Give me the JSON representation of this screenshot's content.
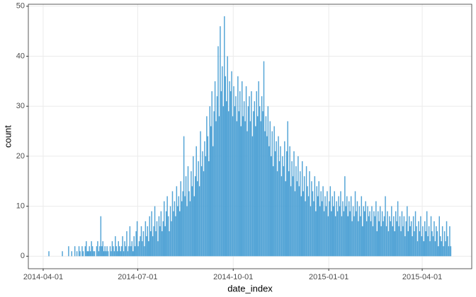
{
  "chart_data": {
    "type": "histogram",
    "x_label": "date_index",
    "y_label": "count",
    "color": "#4a9fd4",
    "grid": true,
    "xlim": [
      16146.7,
      16573.7
    ],
    "xticks": [
      {
        "value": 16161,
        "label": "2014-04-01"
      },
      {
        "value": 16252,
        "label": "2014-07-01"
      },
      {
        "value": 16344,
        "label": "2014-10-01"
      },
      {
        "value": 16436,
        "label": "2015-01-01"
      },
      {
        "value": 16526,
        "label": "2015-04-01"
      }
    ],
    "ylim": [
      -2.5,
      50.4
    ],
    "yticks": [
      0,
      10,
      20,
      30,
      40,
      50
    ],
    "bins": [
      16166,
      16167,
      16168,
      16169,
      16170,
      16171,
      16172,
      16173,
      16174,
      16175,
      16176,
      16177,
      16178,
      16179,
      16180,
      16181,
      16182,
      16183,
      16184,
      16185,
      16186,
      16187,
      16188,
      16189,
      16190,
      16191,
      16192,
      16193,
      16194,
      16195,
      16196,
      16197,
      16198,
      16199,
      16200,
      16201,
      16202,
      16203,
      16204,
      16205,
      16206,
      16207,
      16208,
      16209,
      16210,
      16211,
      16212,
      16213,
      16214,
      16215,
      16216,
      16217,
      16218,
      16219,
      16220,
      16221,
      16222,
      16223,
      16224,
      16225,
      16226,
      16227,
      16228,
      16229,
      16230,
      16231,
      16232,
      16233,
      16234,
      16235,
      16236,
      16237,
      16238,
      16239,
      16240,
      16241,
      16242,
      16243,
      16244,
      16245,
      16246,
      16247,
      16248,
      16249,
      16250,
      16251,
      16252,
      16253,
      16254,
      16255,
      16256,
      16257,
      16258,
      16259,
      16260,
      16261,
      16262,
      16263,
      16264,
      16265,
      16266,
      16267,
      16268,
      16269,
      16270,
      16271,
      16272,
      16273,
      16274,
      16275,
      16276,
      16277,
      16278,
      16279,
      16280,
      16281,
      16282,
      16283,
      16284,
      16285,
      16286,
      16287,
      16288,
      16289,
      16290,
      16291,
      16292,
      16293,
      16294,
      16295,
      16296,
      16297,
      16298,
      16299,
      16300,
      16301,
      16302,
      16303,
      16304,
      16305,
      16306,
      16307,
      16308,
      16309,
      16310,
      16311,
      16312,
      16313,
      16314,
      16315,
      16316,
      16317,
      16318,
      16319,
      16320,
      16321,
      16322,
      16323,
      16324,
      16325,
      16326,
      16327,
      16328,
      16329,
      16330,
      16331,
      16332,
      16333,
      16334,
      16335,
      16336,
      16337,
      16338,
      16339,
      16340,
      16341,
      16342,
      16343,
      16344,
      16345,
      16346,
      16347,
      16348,
      16349,
      16350,
      16351,
      16352,
      16353,
      16354,
      16355,
      16356,
      16357,
      16358,
      16359,
      16360,
      16361,
      16362,
      16363,
      16364,
      16365,
      16366,
      16367,
      16368,
      16369,
      16370,
      16371,
      16372,
      16373,
      16374,
      16375,
      16376,
      16377,
      16378,
      16379,
      16380,
      16381,
      16382,
      16383,
      16384,
      16385,
      16386,
      16387,
      16388,
      16389,
      16390,
      16391,
      16392,
      16393,
      16394,
      16395,
      16396,
      16397,
      16398,
      16399,
      16400,
      16401,
      16402,
      16403,
      16404,
      16405,
      16406,
      16407,
      16408,
      16409,
      16410,
      16411,
      16412,
      16413,
      16414,
      16415,
      16416,
      16417,
      16418,
      16419,
      16420,
      16421,
      16422,
      16423,
      16424,
      16425,
      16426,
      16427,
      16428,
      16429,
      16430,
      16431,
      16432,
      16433,
      16434,
      16435,
      16436,
      16437,
      16438,
      16439,
      16440,
      16441,
      16442,
      16443,
      16444,
      16445,
      16446,
      16447,
      16448,
      16449,
      16450,
      16451,
      16452,
      16453,
      16454,
      16455,
      16456,
      16457,
      16458,
      16459,
      16460,
      16461,
      16462,
      16463,
      16464,
      16465,
      16466,
      16467,
      16468,
      16469,
      16470,
      16471,
      16472,
      16473,
      16474,
      16475,
      16476,
      16477,
      16478,
      16479,
      16480,
      16481,
      16482,
      16483,
      16484,
      16485,
      16486,
      16487,
      16488,
      16489,
      16490,
      16491,
      16492,
      16493,
      16494,
      16495,
      16496,
      16497,
      16498,
      16499,
      16500,
      16501,
      16502,
      16503,
      16504,
      16505,
      16506,
      16507,
      16508,
      16509,
      16510,
      16511,
      16512,
      16513,
      16514,
      16515,
      16516,
      16517,
      16518,
      16519,
      16520,
      16521,
      16522,
      16523,
      16524,
      16525,
      16526,
      16527,
      16528,
      16529,
      16530,
      16531,
      16532,
      16533,
      16534,
      16535,
      16536,
      16537,
      16538,
      16539,
      16540,
      16541,
      16542,
      16543,
      16544,
      16545,
      16546,
      16547,
      16548,
      16549,
      16550,
      16551,
      16552,
      16553,
      16554
    ],
    "values": [
      1,
      0,
      0,
      0,
      0,
      0,
      0,
      0,
      0,
      0,
      0,
      0,
      0,
      1,
      0,
      0,
      0,
      0,
      0,
      2,
      0,
      0,
      1,
      0,
      0,
      2,
      0,
      1,
      0,
      2,
      1,
      0,
      2,
      1,
      0,
      2,
      3,
      1,
      1,
      2,
      1,
      3,
      2,
      1,
      1,
      0,
      2,
      3,
      1,
      2,
      8,
      2,
      3,
      1,
      2,
      1,
      2,
      1,
      0,
      2,
      1,
      3,
      2,
      1,
      4,
      2,
      1,
      3,
      2,
      1,
      2,
      4,
      1,
      3,
      2,
      5,
      1,
      2,
      6,
      2,
      3,
      1,
      4,
      2,
      5,
      7,
      2,
      3,
      4,
      6,
      3,
      5,
      2,
      7,
      4,
      6,
      3,
      8,
      5,
      9,
      4,
      6,
      10,
      5,
      7,
      3,
      8,
      6,
      9,
      5,
      7,
      11,
      6,
      9,
      12,
      8,
      5,
      10,
      7,
      13,
      9,
      11,
      8,
      14,
      10,
      12,
      9,
      15,
      11,
      13,
      24,
      12,
      16,
      10,
      18,
      13,
      11,
      17,
      14,
      20,
      12,
      16,
      22,
      15,
      19,
      14,
      25,
      18,
      21,
      17,
      23,
      20,
      28,
      24,
      19,
      30,
      26,
      33,
      22,
      29,
      35,
      27,
      32,
      42,
      28,
      46,
      33,
      38,
      30,
      48,
      36,
      31,
      40,
      29,
      35,
      33,
      37,
      28,
      34,
      30,
      32,
      27,
      36,
      29,
      33,
      26,
      35,
      28,
      31,
      27,
      34,
      25,
      30,
      32,
      27,
      33,
      24,
      29,
      31,
      26,
      33,
      28,
      35,
      30,
      27,
      32,
      29,
      39,
      25,
      28,
      24,
      30,
      22,
      27,
      20,
      25,
      18,
      26,
      21,
      23,
      17,
      24,
      19,
      22,
      16,
      20,
      18,
      23,
      15,
      21,
      27,
      17,
      22,
      14,
      19,
      16,
      21,
      13,
      18,
      15,
      20,
      14,
      17,
      12,
      19,
      13,
      16,
      11,
      18,
      14,
      12,
      17,
      10,
      15,
      13,
      11,
      16,
      9,
      14,
      12,
      15,
      10,
      13,
      11,
      14,
      9,
      12,
      10,
      13,
      8,
      11,
      14,
      9,
      12,
      10,
      13,
      8,
      11,
      9,
      12,
      10,
      13,
      8,
      11,
      9,
      16,
      10,
      12,
      8,
      11,
      9,
      12,
      7,
      10,
      8,
      13,
      9,
      11,
      7,
      10,
      8,
      12,
      6,
      10,
      9,
      11,
      7,
      10,
      8,
      9,
      7,
      10,
      6,
      9,
      8,
      11,
      5,
      9,
      7,
      10,
      6,
      9,
      7,
      8,
      12,
      6,
      9,
      5,
      8,
      7,
      10,
      6,
      8,
      5,
      9,
      7,
      11,
      6,
      8,
      5,
      9,
      6,
      8,
      4,
      7,
      10,
      5,
      8,
      6,
      7,
      4,
      8,
      5,
      9,
      6,
      3,
      7,
      5,
      8,
      4,
      6,
      3,
      7,
      5,
      9,
      4,
      6,
      3,
      8,
      5,
      4,
      7,
      3,
      6,
      5,
      2,
      8,
      4,
      3,
      6,
      2,
      5,
      3,
      7,
      4,
      2,
      6,
      2
    ]
  }
}
